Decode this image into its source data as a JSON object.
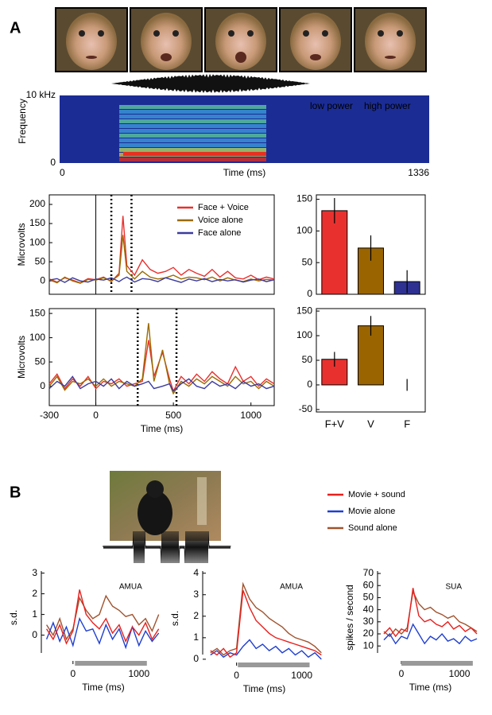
{
  "panel_labels": [
    "A",
    "B"
  ],
  "chart_data": [
    {
      "type": "spectrogram",
      "x_label": "Time (ms)",
      "y_label": "Frequency",
      "xlim": [
        0,
        1336
      ],
      "xticks": [
        0,
        1336
      ],
      "ylim": [
        0,
        10
      ],
      "yticks": [
        {
          "value": 10,
          "label": "10 kHz"
        },
        0
      ],
      "power_labels": [
        "low power",
        "high power"
      ],
      "power_colors": [
        "#6fa8ff",
        "#e0203a"
      ]
    },
    {
      "type": "line",
      "y_label": "Microvolts",
      "frame": true,
      "legend": "upper-right",
      "xlim": [
        -300,
        1150
      ],
      "ylim": [
        -35,
        225
      ],
      "yticks": [
        0,
        50,
        100,
        150,
        200
      ],
      "vlines": [
        {
          "x": 0,
          "style": "solid"
        },
        {
          "x": 100,
          "style": "dotted"
        },
        {
          "x": 230,
          "style": "dotted"
        }
      ],
      "x": [
        -300,
        -250,
        -200,
        -150,
        -100,
        -50,
        0,
        50,
        100,
        150,
        175,
        200,
        250,
        300,
        350,
        400,
        450,
        500,
        550,
        600,
        650,
        700,
        750,
        800,
        850,
        900,
        950,
        1000,
        1050,
        1100,
        1150
      ],
      "series": [
        {
          "name": "Face + Voice",
          "color": "#e8312f",
          "values": [
            5,
            -3,
            8,
            2,
            -5,
            6,
            3,
            10,
            -2,
            20,
            170,
            40,
            15,
            55,
            30,
            20,
            25,
            35,
            15,
            30,
            20,
            12,
            30,
            10,
            25,
            8,
            5,
            15,
            3,
            10,
            5
          ]
        },
        {
          "name": "Voice alone",
          "color": "#9a6b00",
          "values": [
            3,
            -5,
            10,
            0,
            -6,
            4,
            2,
            8,
            0,
            15,
            120,
            25,
            5,
            25,
            10,
            5,
            8,
            15,
            5,
            10,
            8,
            3,
            10,
            0,
            8,
            2,
            -2,
            5,
            0,
            4,
            2
          ]
        },
        {
          "name": "Face alone",
          "color": "#3b3b9e",
          "values": [
            2,
            6,
            -4,
            8,
            0,
            -3,
            5,
            2,
            8,
            -2,
            5,
            10,
            -3,
            6,
            4,
            -2,
            8,
            2,
            -4,
            5,
            0,
            6,
            -2,
            4,
            0,
            3,
            -3,
            2,
            5,
            -2,
            3
          ]
        }
      ]
    },
    {
      "type": "bar",
      "frame": true,
      "categories": [
        null,
        null,
        null
      ],
      "values": [
        132,
        73,
        20
      ],
      "errors": [
        20,
        20,
        18
      ],
      "colors": [
        "#e8312f",
        "#9a6400",
        "#2e3192"
      ],
      "ylim": [
        0,
        157
      ],
      "yticks": [
        0,
        50,
        100,
        150
      ]
    },
    {
      "type": "line",
      "y_label": "Microvolts",
      "x_label": "Time (ms)",
      "frame": true,
      "xlim": [
        -300,
        1150
      ],
      "ylim": [
        -40,
        160
      ],
      "xticks": [
        -300,
        0,
        500,
        1000
      ],
      "yticks": [
        0,
        50,
        100,
        150
      ],
      "vlines": [
        {
          "x": 0,
          "style": "solid"
        },
        {
          "x": 270,
          "style": "dotted"
        },
        {
          "x": 520,
          "style": "dotted"
        }
      ],
      "x": [
        -300,
        -250,
        -200,
        -150,
        -100,
        -50,
        0,
        50,
        100,
        150,
        200,
        250,
        300,
        340,
        375,
        430,
        475,
        500,
        550,
        600,
        650,
        700,
        750,
        800,
        850,
        900,
        950,
        1000,
        1050,
        1100,
        1150
      ],
      "series": [
        {
          "color": "#e8312f",
          "values": [
            5,
            25,
            -5,
            15,
            0,
            20,
            -5,
            10,
            5,
            15,
            0,
            5,
            10,
            95,
            20,
            70,
            15,
            -10,
            20,
            5,
            25,
            10,
            30,
            15,
            5,
            40,
            10,
            20,
            0,
            15,
            5
          ]
        },
        {
          "color": "#9a6b00",
          "values": [
            0,
            20,
            -8,
            10,
            5,
            15,
            0,
            15,
            0,
            10,
            5,
            0,
            15,
            130,
            10,
            75,
            5,
            -15,
            10,
            0,
            15,
            5,
            20,
            10,
            0,
            20,
            5,
            10,
            -5,
            10,
            0
          ]
        },
        {
          "color": "#3b3b9e",
          "values": [
            -5,
            10,
            0,
            20,
            -5,
            5,
            10,
            0,
            15,
            -5,
            10,
            0,
            5,
            10,
            -5,
            0,
            5,
            -10,
            5,
            15,
            0,
            -5,
            10,
            0,
            5,
            -5,
            10,
            0,
            5,
            -5,
            0
          ]
        }
      ]
    },
    {
      "type": "bar",
      "frame": true,
      "categories": [
        "F+V",
        "V",
        "F"
      ],
      "values": [
        52,
        120,
        0
      ],
      "errors": [
        15,
        20,
        12
      ],
      "colors": [
        "#e8312f",
        "#9a6400",
        "#2e3192"
      ],
      "ylim": [
        -55,
        155
      ],
      "yticks": [
        -50,
        0,
        50,
        100,
        150
      ]
    },
    {
      "type": "line",
      "label": "AMUA",
      "y_label": "s.d.",
      "x_label": "Time (ms)",
      "legend": "outside-right",
      "xlim": [
        -480,
        1400
      ],
      "ylim": [
        -1.4,
        3.1
      ],
      "xticks": [
        0,
        1000
      ],
      "yticks": [
        0,
        1,
        2,
        3
      ],
      "stimulus": [
        30,
        1120
      ],
      "x": [
        -400,
        -300,
        -200,
        -100,
        0,
        100,
        200,
        300,
        400,
        500,
        600,
        700,
        800,
        900,
        1000,
        1100,
        1200,
        1300
      ],
      "series": [
        {
          "name": "Sound alone",
          "color": "#a0522d",
          "values": [
            0.5,
            0,
            0.8,
            -0.2,
            0.3,
            1.8,
            1.2,
            0.8,
            1.0,
            1.9,
            1.4,
            1.2,
            0.9,
            1.0,
            0.5,
            0.8,
            0.2,
            1.0
          ]
        },
        {
          "name": "Movie alone",
          "color": "#1f3fcf",
          "values": [
            -0.2,
            0.6,
            -0.3,
            0.4,
            -0.5,
            0.8,
            0.2,
            0.3,
            -0.4,
            0.5,
            -0.2,
            0.3,
            -0.6,
            0.4,
            -0.5,
            0.2,
            -0.3,
            0.1
          ]
        },
        {
          "name": "Movie + sound",
          "color": "#e8201e",
          "values": [
            0.3,
            -0.2,
            0.5,
            -0.4,
            0.2,
            2.2,
            1.0,
            0.6,
            0.3,
            0.8,
            0.1,
            0.5,
            -0.3,
            0.4,
            0.0,
            0.6,
            -0.2,
            0.3
          ]
        }
      ]
    },
    {
      "type": "line",
      "label": "AMUA",
      "y_label": "s.d.",
      "x_label": "Time (ms)",
      "xlim": [
        -520,
        1370
      ],
      "ylim": [
        -0.3,
        4.1
      ],
      "xticks": [
        0,
        1000
      ],
      "yticks": [
        0,
        1,
        2,
        3,
        4
      ],
      "stimulus": [
        20,
        1120
      ],
      "x": [
        -400,
        -300,
        -200,
        -100,
        0,
        100,
        200,
        300,
        400,
        500,
        600,
        700,
        800,
        900,
        1000,
        1100,
        1200,
        1300
      ],
      "series": [
        {
          "color": "#a0522d",
          "values": [
            0.3,
            0.5,
            0.2,
            0.4,
            0.5,
            3.5,
            2.8,
            2.4,
            2.2,
            1.9,
            1.7,
            1.5,
            1.2,
            1.0,
            0.9,
            0.8,
            0.6,
            0.3
          ]
        },
        {
          "color": "#1f3fcf",
          "values": [
            0.2,
            0.4,
            0.1,
            0.3,
            0.2,
            0.6,
            0.9,
            0.5,
            0.7,
            0.4,
            0.6,
            0.3,
            0.5,
            0.2,
            0.4,
            0.1,
            0.3,
            0.0
          ]
        },
        {
          "color": "#e8201e",
          "values": [
            0.4,
            0.2,
            0.5,
            0.1,
            0.3,
            3.2,
            2.4,
            1.8,
            1.5,
            1.2,
            1.0,
            0.9,
            0.8,
            0.7,
            0.6,
            0.5,
            0.4,
            0.2
          ]
        }
      ]
    },
    {
      "type": "line",
      "label": "SUA",
      "y_label": "spikes / second",
      "x_label": "Time (ms)",
      "xlim": [
        -410,
        1410
      ],
      "ylim": [
        -5,
        72
      ],
      "xticks": [
        0,
        1000
      ],
      "yticks": [
        10,
        20,
        30,
        40,
        50,
        60,
        70
      ],
      "stimulus": [
        0,
        1230
      ],
      "x": [
        -300,
        -200,
        -100,
        0,
        100,
        200,
        300,
        400,
        500,
        600,
        700,
        800,
        900,
        1000,
        1100,
        1200,
        1300
      ],
      "series": [
        {
          "color": "#a0522d",
          "values": [
            22,
            18,
            24,
            20,
            25,
            55,
            45,
            40,
            42,
            38,
            36,
            33,
            35,
            30,
            28,
            25,
            22
          ]
        },
        {
          "color": "#1f3fcf",
          "values": [
            15,
            20,
            12,
            18,
            16,
            28,
            20,
            12,
            18,
            15,
            20,
            14,
            16,
            12,
            18,
            14,
            16
          ]
        },
        {
          "color": "#e8201e",
          "values": [
            20,
            25,
            18,
            24,
            22,
            58,
            35,
            30,
            32,
            28,
            26,
            30,
            24,
            27,
            22,
            25,
            20
          ]
        }
      ]
    }
  ]
}
